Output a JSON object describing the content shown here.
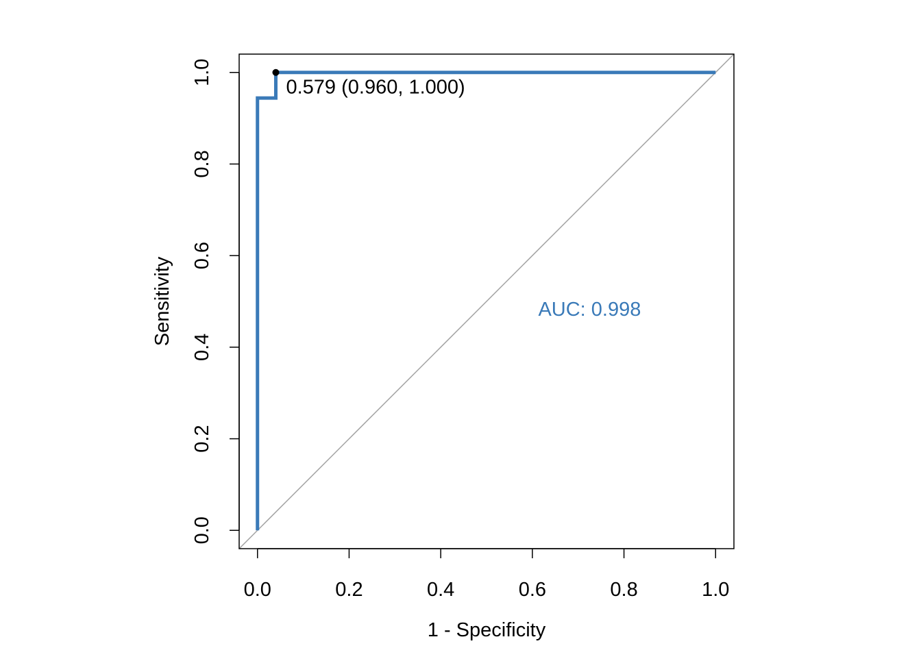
{
  "chart_data": {
    "type": "line",
    "title": "",
    "xlabel": "1 - Specificity",
    "ylabel": "Sensitivity",
    "xlim": [
      -0.04,
      1.04
    ],
    "ylim": [
      -0.04,
      1.04
    ],
    "x_ticks": [
      0.0,
      0.2,
      0.4,
      0.6,
      0.8,
      1.0
    ],
    "x_tick_labels": [
      "0.0",
      "0.2",
      "0.4",
      "0.6",
      "0.8",
      "1.0"
    ],
    "y_ticks": [
      0.0,
      0.2,
      0.4,
      0.6,
      0.8,
      1.0
    ],
    "y_tick_labels": [
      "0.0",
      "0.2",
      "0.4",
      "0.6",
      "0.8",
      "1.0"
    ],
    "grid": false,
    "series": [
      {
        "color": "#3a7ab8",
        "x": [
          0.0,
          0.0,
          0.0,
          0.0,
          0.04,
          0.04,
          0.04,
          1.0
        ],
        "y": [
          0.0,
          0.833,
          0.944,
          0.944,
          0.944,
          0.944,
          1.0,
          1.0
        ]
      }
    ],
    "reference_line": {
      "color": "#a0a0a0",
      "x": [
        -0.04,
        1.04
      ],
      "y": [
        -0.04,
        1.04
      ]
    },
    "threshold_point": {
      "x": 0.04,
      "y": 1.0,
      "label": "0.579 (0.960, 1.000)",
      "color": "#000000"
    },
    "auc_annotation": {
      "text": "AUC: 0.998",
      "x": 0.725,
      "y": 0.48,
      "color": "#3a7ab8"
    }
  }
}
